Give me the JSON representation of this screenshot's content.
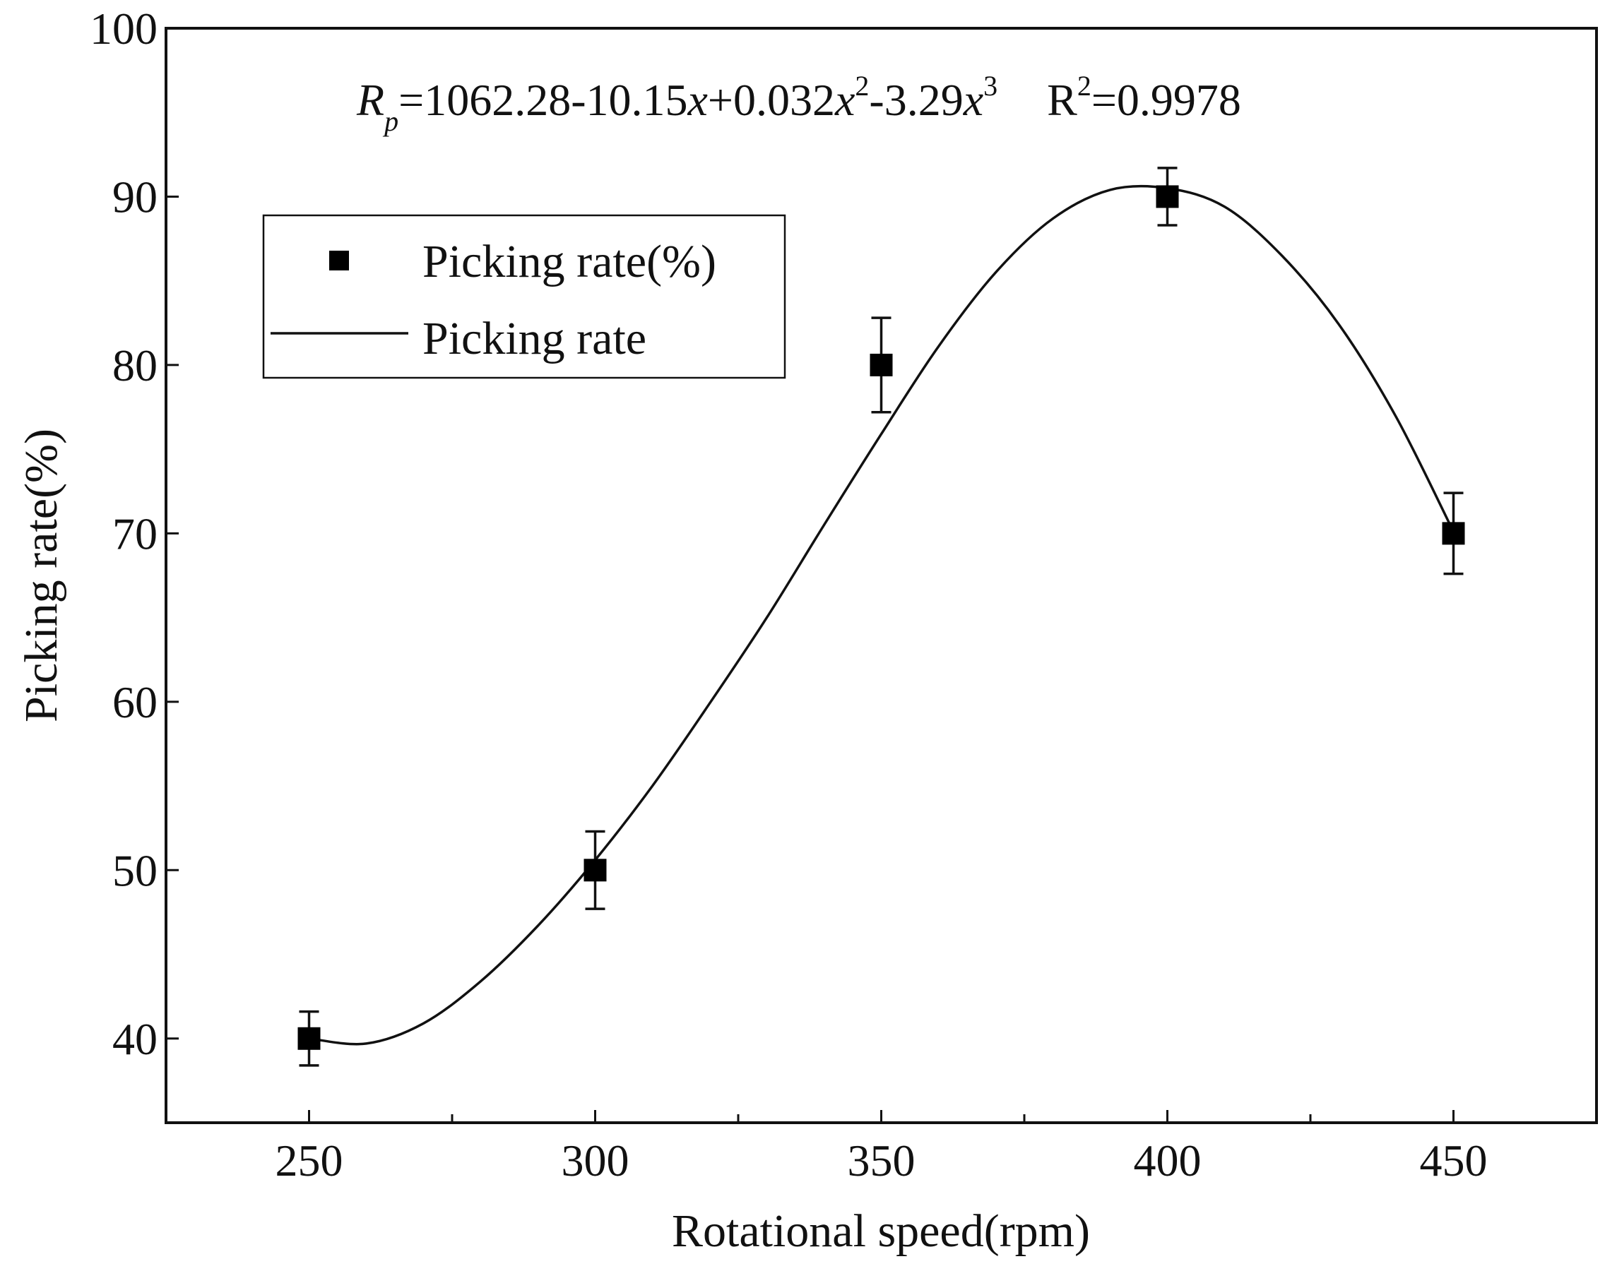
{
  "chart_data": {
    "type": "scatter",
    "title": "",
    "xlabel": "Rotational speed(rpm)",
    "ylabel": "Picking rate(%)",
    "xlim": [
      225,
      475
    ],
    "ylim": [
      35,
      100
    ],
    "xticks": [
      250,
      300,
      350,
      400,
      450
    ],
    "xticks_minor": [
      275,
      325,
      375,
      425
    ],
    "yticks": [
      40,
      50,
      60,
      70,
      80,
      90,
      100
    ],
    "grid": false,
    "legend_position": "top-left",
    "series": [
      {
        "name": "Picking rate(%)",
        "kind": "scatter",
        "marker": "square",
        "x": [
          250,
          300,
          350,
          400,
          450
        ],
        "y": [
          40,
          50,
          80,
          90,
          70
        ],
        "error": [
          1.6,
          2.3,
          2.8,
          1.7,
          2.4
        ]
      },
      {
        "name": "Picking rate",
        "kind": "line",
        "x": [
          250,
          260,
          270,
          280,
          290,
          300,
          310,
          320,
          330,
          340,
          350,
          360,
          370,
          380,
          390,
          400,
          410,
          420,
          430,
          440,
          450
        ],
        "y": [
          40.0,
          39.7,
          40.9,
          43.4,
          46.7,
          50.6,
          55.0,
          59.9,
          65.0,
          70.5,
          75.9,
          81.1,
          85.5,
          88.7,
          90.4,
          90.5,
          89.4,
          86.5,
          82.4,
          76.9,
          70.1
        ]
      }
    ],
    "annotation": {
      "equation_lhs_base": "R",
      "equation_lhs_sub": "p",
      "equation_const": "=1062.28-10.15",
      "equation_var": "x",
      "equation_term2": "+0.032",
      "equation_exp2": "2",
      "equation_term3": "-3.29",
      "equation_exp3": "3",
      "r2_base": "R",
      "r2_exp": "2",
      "r2_value": "=0.9978"
    }
  }
}
